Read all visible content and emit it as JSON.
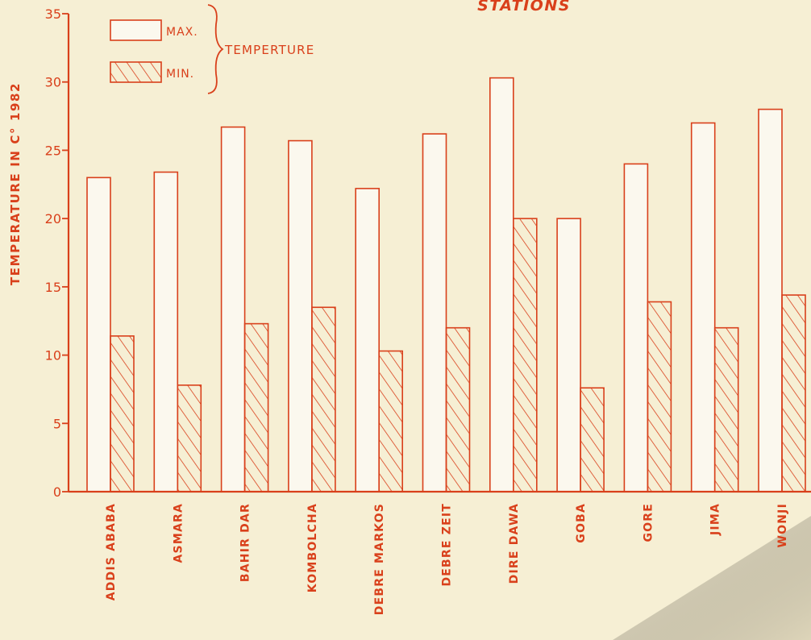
{
  "colors": {
    "ink": "#d9401b",
    "paper": "#f6efd4",
    "bar_max_fill": "#fbf8ee",
    "shade": "#c9bfa3"
  },
  "chart_data": {
    "type": "bar",
    "title": "STATIONS",
    "ylabel": "TEMPERATURE IN C° 1982",
    "xlabel": "",
    "ylim": [
      0,
      35
    ],
    "yticks": [
      0,
      5,
      10,
      15,
      20,
      25,
      30,
      35
    ],
    "grid": false,
    "legend_position": "top-left",
    "legend_group_label": "TEMPERTURE",
    "categories": [
      "ADDIS ABABA",
      "ASMARA",
      "BAHIR DAR",
      "KOMBOLCHA",
      "DEBRE MARKOS",
      "DEBRE ZEIT",
      "DIRE DAWA",
      "GOBA",
      "GORE",
      "JIMA",
      "WONJI"
    ],
    "series": [
      {
        "name": "MAX.",
        "pattern": "open",
        "values": [
          23.0,
          23.4,
          26.7,
          25.7,
          22.2,
          26.2,
          30.3,
          20.0,
          24.0,
          27.0,
          28.0
        ]
      },
      {
        "name": "MIN.",
        "pattern": "hatched",
        "values": [
          11.4,
          7.8,
          12.3,
          13.5,
          10.3,
          12.0,
          20.0,
          7.6,
          13.9,
          12.0,
          14.4
        ]
      }
    ]
  }
}
